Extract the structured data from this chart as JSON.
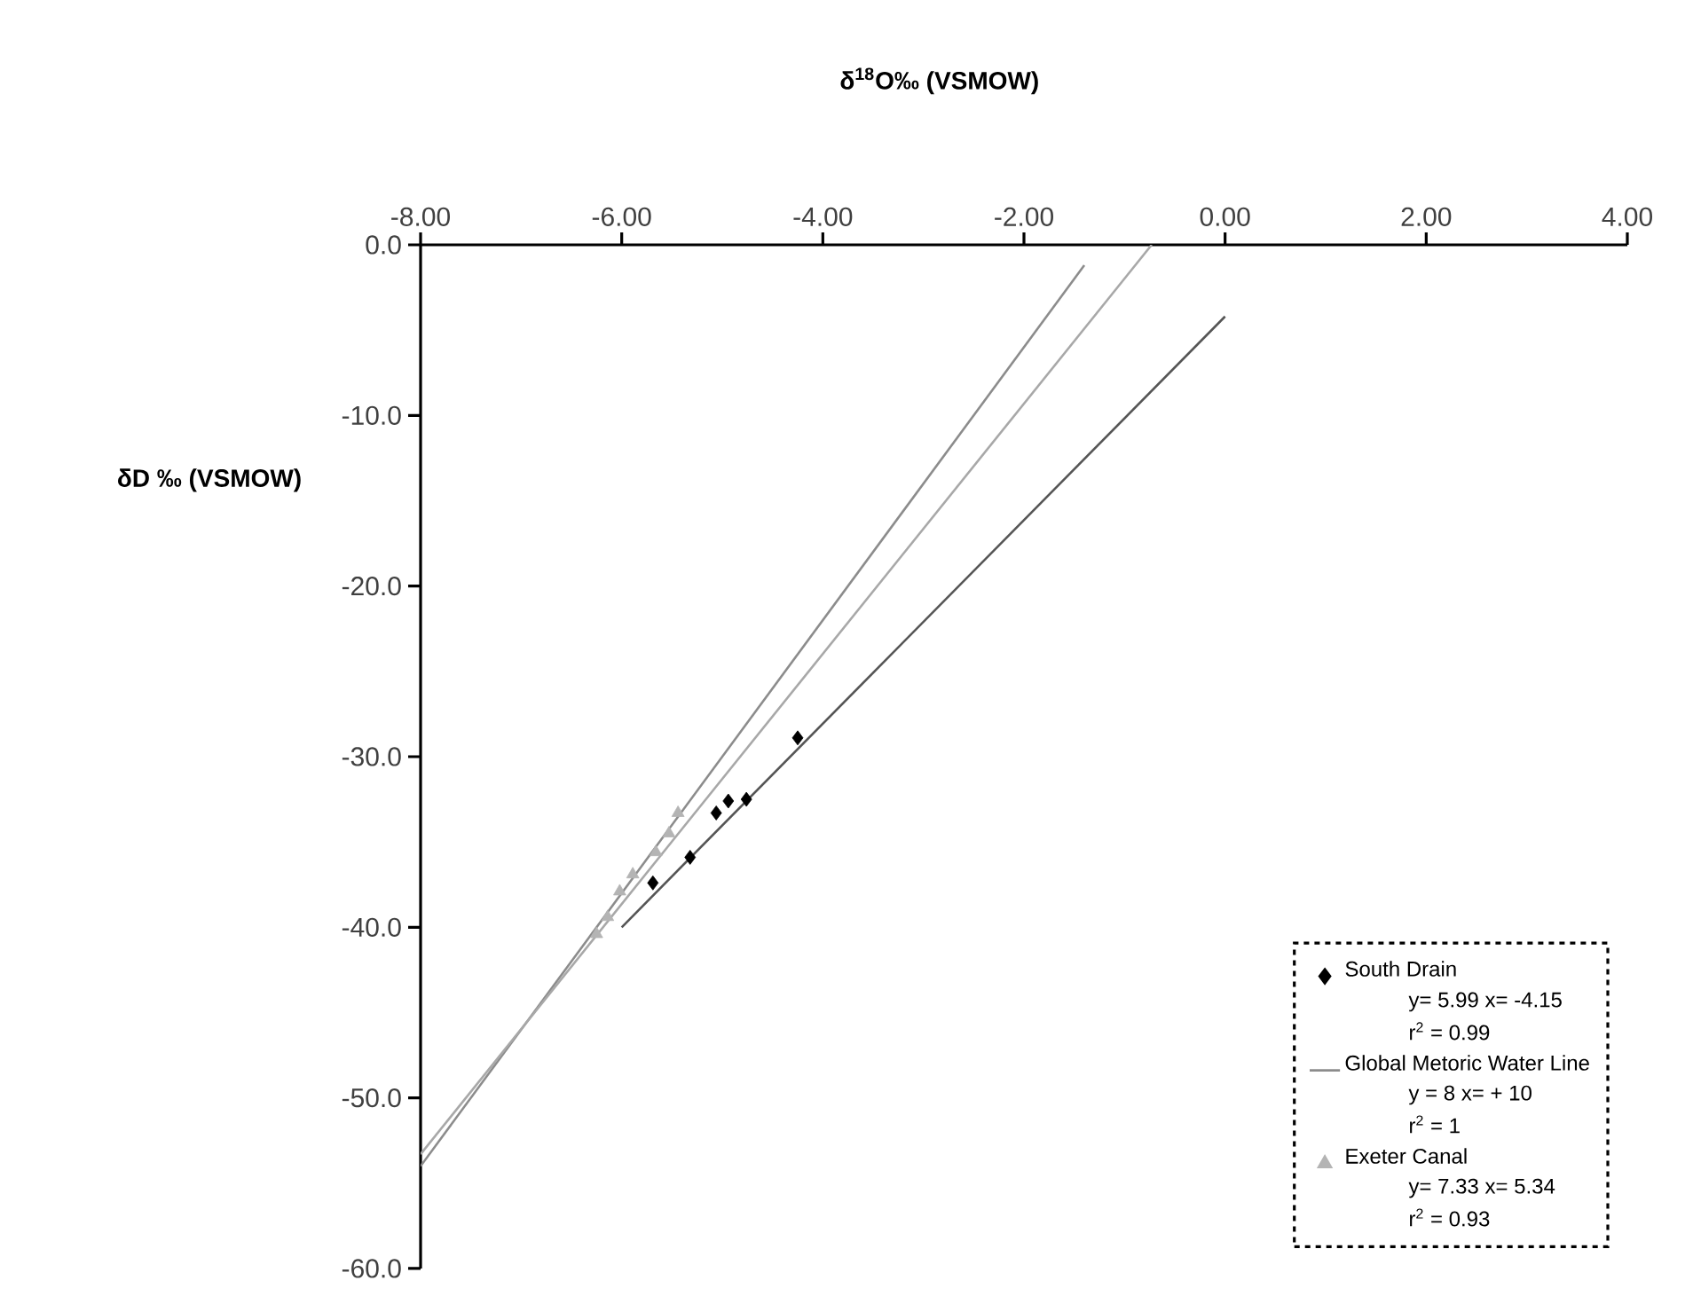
{
  "chart_data": {
    "type": "scatter",
    "xlabel": "δ$^{18}$O‰ (VSMOW)",
    "ylabel": "δD ‰ (VSMOW)",
    "xlim": [
      -8,
      4
    ],
    "ylim": [
      -60,
      0
    ],
    "xticks": [
      {
        "value": -8,
        "label": "-8.00"
      },
      {
        "value": -6,
        "label": "-6.00"
      },
      {
        "value": -4,
        "label": "-4.00"
      },
      {
        "value": -2,
        "label": "-2.00"
      },
      {
        "value": 0,
        "label": "0.00"
      },
      {
        "value": 2,
        "label": "2.00"
      },
      {
        "value": 4,
        "label": "4.00"
      }
    ],
    "yticks": [
      {
        "value": 0,
        "label": "0.0"
      },
      {
        "value": -10,
        "label": "-10.0"
      },
      {
        "value": -20,
        "label": "-20.0"
      },
      {
        "value": -30,
        "label": "-30.0"
      },
      {
        "value": -40,
        "label": "-40.0"
      },
      {
        "value": -50,
        "label": "-50.0"
      },
      {
        "value": -60,
        "label": "-60.0"
      }
    ],
    "legend": "bottom right",
    "annotations": [
      "y= 5.99 x= -4.15",
      "r$^{2}$ = 0.99",
      "y = 8 x= + 10",
      "r$^{2}$ = 1",
      "y= 7.33 x= 5.34",
      "r$^{2}$ = 0.93"
    ],
    "series": [
      {
        "name": "South Drain",
        "marker": "diamond",
        "color": "#000000",
        "x": [
          -4.25,
          -4.76,
          -4.94,
          -5.06,
          -5.32,
          -5.69
        ],
        "values": [
          -28.9,
          -32.5,
          -32.6,
          -33.3,
          -35.9,
          -37.4
        ]
      },
      {
        "type": "line",
        "marker": "none",
        "color": "#555555",
        "x": [
          -6.0,
          0.0
        ],
        "values": [
          -40,
          -4.2
        ]
      },
      {
        "name": "Global Metoric Water Line",
        "type": "line",
        "marker": "none",
        "color": "#8c8c8c",
        "x": [
          -8.0,
          -1.4
        ],
        "values": [
          -54.0,
          -1.2
        ]
      },
      {
        "name": "Exeter Canal",
        "marker": "triangle",
        "color": "#b4b4b4",
        "x": [
          -5.44,
          -5.53,
          -5.66,
          -5.89,
          -6.02,
          -6.14,
          -6.25
        ],
        "values": [
          -33.3,
          -34.5,
          -35.6,
          -36.9,
          -37.9,
          -39.4,
          -40.4
        ]
      },
      {
        "type": "line",
        "marker": "none",
        "color": "#a8a8a8",
        "x": [
          -8.0,
          -0.73
        ],
        "values": [
          -53.3,
          0.0
        ]
      }
    ]
  }
}
